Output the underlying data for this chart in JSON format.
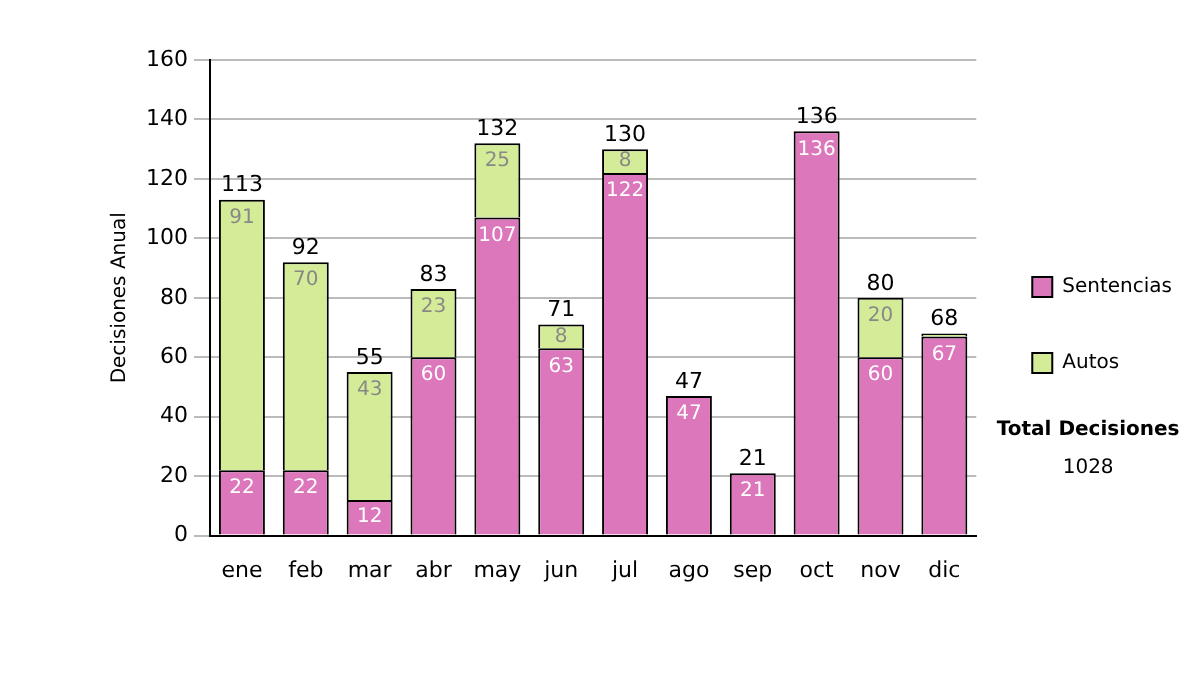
{
  "chart_data": {
    "type": "bar",
    "stacked": true,
    "ylabel": "Decisiones Anual",
    "categories": [
      "ene",
      "feb",
      "mar",
      "abr",
      "may",
      "jun",
      "jul",
      "ago",
      "sep",
      "oct",
      "nov",
      "dic"
    ],
    "series": [
      {
        "name": "Sentencias",
        "color": "#dd77bb",
        "values": [
          22,
          22,
          12,
          60,
          107,
          63,
          122,
          47,
          21,
          136,
          60,
          67
        ],
        "value_labels": [
          "22",
          "22",
          "12",
          "60",
          "107",
          "63",
          "122",
          "47",
          "21",
          "136",
          "60",
          "67"
        ]
      },
      {
        "name": "Autos",
        "color": "#d4ec98",
        "values": [
          91,
          70,
          43,
          23,
          25,
          8,
          8,
          null,
          null,
          null,
          20,
          1
        ],
        "value_labels": [
          "91",
          "70",
          "43",
          "23",
          "25",
          "8",
          "8",
          null,
          null,
          null,
          "20",
          null
        ]
      }
    ],
    "totals": [
      "113",
      "92",
      "55",
      "83",
      "132",
      "71",
      "130",
      "47",
      "21",
      "136",
      "80",
      "68"
    ],
    "ylim": [
      0,
      160
    ],
    "yticks": [
      0,
      20,
      40,
      60,
      80,
      100,
      120,
      140,
      160
    ],
    "grid": "y",
    "legend": "right",
    "annotations": [
      "Total Decisiones",
      "1028"
    ]
  }
}
